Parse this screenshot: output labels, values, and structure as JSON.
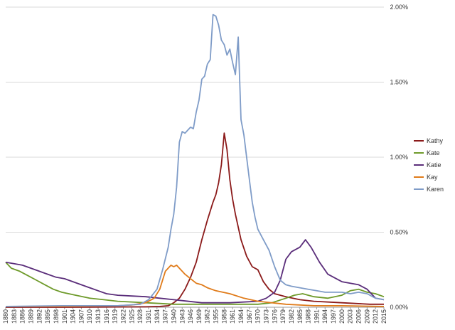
{
  "chart_data": {
    "type": "line",
    "title": "",
    "xlabel": "",
    "ylabel": "",
    "xlim": [
      1880,
      2015
    ],
    "ylim": [
      0,
      2.0
    ],
    "y_unit": "%",
    "y_ticks": [
      "0.00%",
      "0.50%",
      "1.00%",
      "1.50%",
      "2.00%"
    ],
    "y_tick_values": [
      0,
      0.5,
      1.0,
      1.5,
      2.0
    ],
    "x_tick_labels": [
      "1880",
      "1883",
      "1886",
      "1889",
      "1892",
      "1895",
      "1898",
      "1901",
      "1904",
      "1907",
      "1910",
      "1913",
      "1916",
      "1919",
      "1922",
      "1925",
      "1928",
      "1931",
      "1934",
      "1937",
      "1940",
      "1943",
      "1946",
      "1949",
      "1952",
      "1955",
      "1958",
      "1961",
      "1964",
      "1967",
      "1970",
      "1973",
      "1976",
      "1979",
      "1982",
      "1985",
      "1988",
      "1991",
      "1994",
      "1997",
      "2000",
      "2003",
      "2006",
      "2009",
      "2012",
      "2015"
    ],
    "grid": "horizontal",
    "y_axis_side": "right",
    "legend_position": "right",
    "series": [
      {
        "name": "Kathy",
        "color": "#8B1A1A",
        "x": [
          1880,
          1900,
          1920,
          1930,
          1935,
          1938,
          1940,
          1942,
          1944,
          1946,
          1948,
          1950,
          1952,
          1954,
          1955,
          1956,
          1957,
          1958,
          1959,
          1960,
          1961,
          1962,
          1964,
          1966,
          1968,
          1970,
          1972,
          1974,
          1976,
          1978,
          1980,
          1985,
          1990,
          2000,
          2010,
          2015
        ],
        "y": [
          0,
          0,
          0.002,
          0.003,
          0.005,
          0.01,
          0.03,
          0.06,
          0.12,
          0.2,
          0.3,
          0.45,
          0.58,
          0.7,
          0.75,
          0.83,
          0.95,
          1.16,
          1.05,
          0.85,
          0.72,
          0.62,
          0.45,
          0.34,
          0.27,
          0.25,
          0.17,
          0.12,
          0.09,
          0.08,
          0.07,
          0.05,
          0.04,
          0.03,
          0.02,
          0.02
        ]
      },
      {
        "name": "Kate",
        "color": "#6E9A2A",
        "x": [
          1880,
          1882,
          1885,
          1888,
          1891,
          1894,
          1897,
          1900,
          1905,
          1910,
          1915,
          1920,
          1925,
          1930,
          1935,
          1940,
          1945,
          1950,
          1960,
          1970,
          1975,
          1980,
          1983,
          1986,
          1990,
          1995,
          2000,
          2003,
          2006,
          2009,
          2012,
          2015
        ],
        "y": [
          0.3,
          0.26,
          0.24,
          0.21,
          0.18,
          0.15,
          0.12,
          0.1,
          0.08,
          0.06,
          0.05,
          0.04,
          0.035,
          0.03,
          0.025,
          0.02,
          0.02,
          0.02,
          0.02,
          0.02,
          0.03,
          0.06,
          0.08,
          0.09,
          0.07,
          0.06,
          0.08,
          0.11,
          0.12,
          0.1,
          0.09,
          0.07
        ]
      },
      {
        "name": "Katie",
        "color": "#5A2D7A",
        "x": [
          1880,
          1883,
          1886,
          1889,
          1892,
          1895,
          1898,
          1901,
          1904,
          1907,
          1910,
          1913,
          1916,
          1920,
          1925,
          1930,
          1935,
          1940,
          1950,
          1960,
          1970,
          1973,
          1976,
          1978,
          1980,
          1982,
          1985,
          1987,
          1989,
          1992,
          1995,
          2000,
          2003,
          2006,
          2009,
          2012,
          2015
        ],
        "y": [
          0.3,
          0.29,
          0.28,
          0.26,
          0.24,
          0.22,
          0.2,
          0.19,
          0.17,
          0.15,
          0.13,
          0.11,
          0.09,
          0.08,
          0.075,
          0.07,
          0.06,
          0.05,
          0.03,
          0.03,
          0.04,
          0.06,
          0.1,
          0.18,
          0.32,
          0.37,
          0.4,
          0.45,
          0.4,
          0.3,
          0.22,
          0.17,
          0.16,
          0.15,
          0.12,
          0.06,
          0.05
        ]
      },
      {
        "name": "Kay",
        "color": "#E07B1A",
        "x": [
          1880,
          1900,
          1920,
          1925,
          1930,
          1933,
          1935,
          1937,
          1939,
          1940,
          1941,
          1942,
          1944,
          1946,
          1948,
          1950,
          1952,
          1955,
          1960,
          1965,
          1970,
          1975,
          1980,
          1990,
          2000,
          2015
        ],
        "y": [
          0.005,
          0.005,
          0.01,
          0.015,
          0.03,
          0.06,
          0.12,
          0.24,
          0.28,
          0.27,
          0.28,
          0.26,
          0.22,
          0.19,
          0.16,
          0.15,
          0.13,
          0.11,
          0.09,
          0.06,
          0.04,
          0.03,
          0.02,
          0.01,
          0.01,
          0.005
        ]
      },
      {
        "name": "Karen",
        "color": "#7F9CC8",
        "x": [
          1880,
          1900,
          1920,
          1928,
          1931,
          1934,
          1936,
          1938,
          1939,
          1940,
          1941,
          1942,
          1943,
          1944,
          1946,
          1947,
          1948,
          1949,
          1950,
          1951,
          1952,
          1953,
          1954,
          1955,
          1956,
          1957,
          1958,
          1959,
          1960,
          1961,
          1962,
          1963,
          1964,
          1965,
          1966,
          1967,
          1968,
          1969,
          1970,
          1972,
          1974,
          1976,
          1978,
          1980,
          1982,
          1985,
          1988,
          1991,
          1994,
          1997,
          2000,
          2003,
          2006,
          2009,
          2012,
          2015
        ],
        "y": [
          0.005,
          0.01,
          0.01,
          0.02,
          0.05,
          0.12,
          0.25,
          0.4,
          0.52,
          0.62,
          0.8,
          1.1,
          1.17,
          1.16,
          1.2,
          1.19,
          1.3,
          1.38,
          1.52,
          1.54,
          1.62,
          1.65,
          1.95,
          1.94,
          1.88,
          1.78,
          1.75,
          1.68,
          1.72,
          1.63,
          1.55,
          1.8,
          1.25,
          1.15,
          1.0,
          0.85,
          0.7,
          0.6,
          0.52,
          0.45,
          0.38,
          0.27,
          0.18,
          0.15,
          0.14,
          0.13,
          0.12,
          0.11,
          0.1,
          0.1,
          0.1,
          0.09,
          0.1,
          0.09,
          0.06,
          0.05
        ]
      }
    ]
  }
}
